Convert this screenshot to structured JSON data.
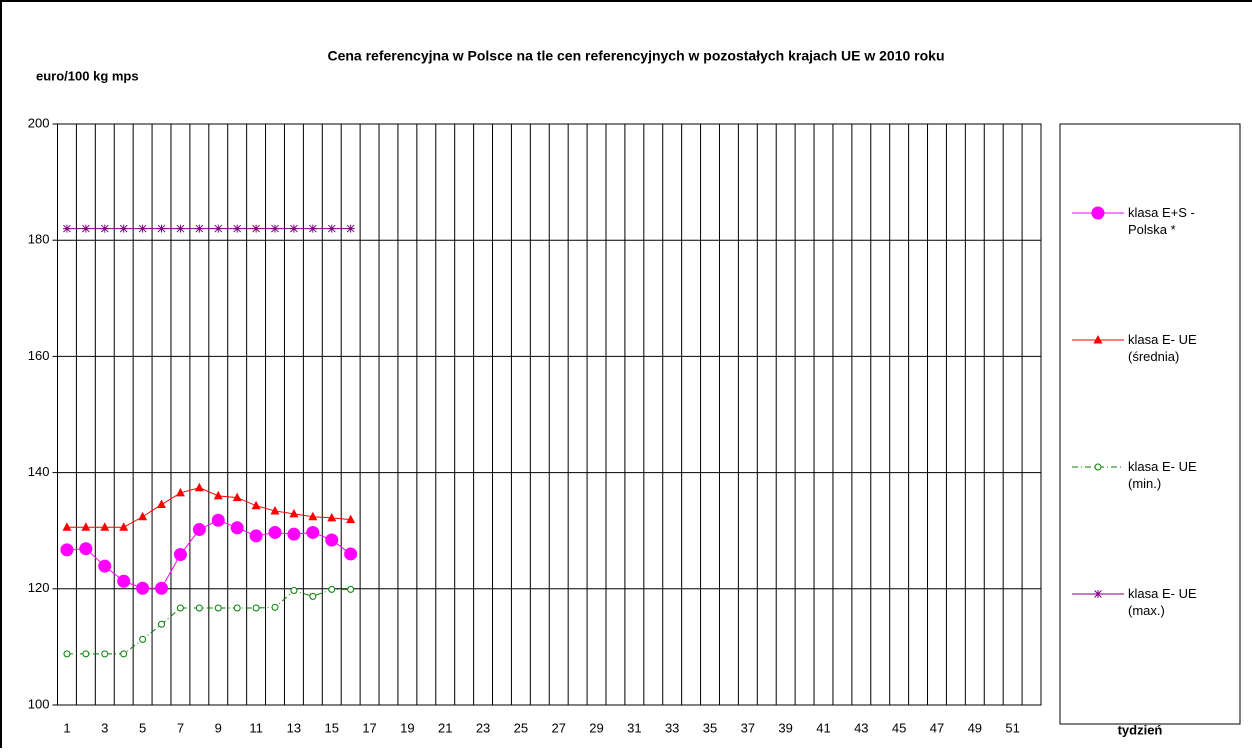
{
  "chart_data": {
    "type": "line",
    "title": "Cena referencyjna w Polsce na tle cen referencyjnych w pozostałych krajach UE w 2010 roku",
    "y_label": "euro/100 kg mps",
    "x_label": "tydzień",
    "categories": [
      "1",
      null,
      "3",
      null,
      "5",
      null,
      "7",
      null,
      "9",
      null,
      "11",
      null,
      "13",
      null,
      "15",
      null,
      "17",
      null,
      "19",
      null,
      "21",
      null,
      "23",
      null,
      "25",
      null,
      "27",
      null,
      "29",
      null,
      "31",
      null,
      "33",
      null,
      "35",
      null,
      "37",
      null,
      "39",
      null,
      "41",
      null,
      "43",
      null,
      "45",
      null,
      "47",
      null,
      "49",
      null,
      "51",
      null
    ],
    "ylim": [
      100,
      200
    ],
    "yticks": [
      100,
      120,
      140,
      160,
      180,
      200
    ],
    "grid": true,
    "legend": "right",
    "series": [
      {
        "name": "klasa E+S - Polska *",
        "color": "#ff00ff",
        "marker": "circle",
        "values": [
          126.7,
          126.9,
          123.9,
          121.3,
          120.1,
          120.1,
          125.9,
          130.2,
          131.8,
          130.5,
          129.1,
          129.7,
          129.4,
          129.7,
          128.4,
          126.0,
          null,
          null,
          null,
          null,
          null,
          null,
          null,
          null,
          null,
          null,
          null,
          null,
          null,
          null,
          null,
          null,
          null,
          null,
          null,
          null,
          null,
          null,
          null,
          null,
          null,
          null,
          null,
          null,
          null,
          null,
          null,
          null,
          null,
          null,
          null,
          null
        ]
      },
      {
        "name": "klasa E- UE (średnia)",
        "color": "#ff0000",
        "marker": "triangle",
        "values": [
          130.6,
          130.6,
          130.6,
          130.6,
          132.4,
          134.5,
          136.5,
          137.4,
          136.0,
          135.7,
          134.3,
          133.4,
          132.9,
          132.4,
          132.2,
          131.9,
          null,
          null,
          null,
          null,
          null,
          null,
          null,
          null,
          null,
          null,
          null,
          null,
          null,
          null,
          null,
          null,
          null,
          null,
          null,
          null,
          null,
          null,
          null,
          null,
          null,
          null,
          null,
          null,
          null,
          null,
          null,
          null,
          null,
          null,
          null,
          null
        ]
      },
      {
        "name": "klasa E- UE (min.)",
        "color": "#008000",
        "marker": "open-circle",
        "dash": "dashdot",
        "values": [
          108.8,
          108.8,
          108.8,
          108.8,
          111.3,
          113.9,
          116.7,
          116.7,
          116.7,
          116.7,
          116.7,
          116.8,
          119.7,
          118.7,
          119.9,
          119.9,
          null,
          null,
          null,
          null,
          null,
          null,
          null,
          null,
          null,
          null,
          null,
          null,
          null,
          null,
          null,
          null,
          null,
          null,
          null,
          null,
          null,
          null,
          null,
          null,
          null,
          null,
          null,
          null,
          null,
          null,
          null,
          null,
          null,
          null,
          null,
          null
        ]
      },
      {
        "name": "klasa E- UE (max.)",
        "color": "#800080",
        "marker": "asterisk",
        "values": [
          182,
          182,
          182,
          182,
          182,
          182,
          182,
          182,
          182,
          182,
          182,
          182,
          182,
          182,
          182,
          182,
          null,
          null,
          null,
          null,
          null,
          null,
          null,
          null,
          null,
          null,
          null,
          null,
          null,
          null,
          null,
          null,
          null,
          null,
          null,
          null,
          null,
          null,
          null,
          null,
          null,
          null,
          null,
          null,
          null,
          null,
          null,
          null,
          null,
          null,
          null,
          null
        ]
      }
    ]
  }
}
